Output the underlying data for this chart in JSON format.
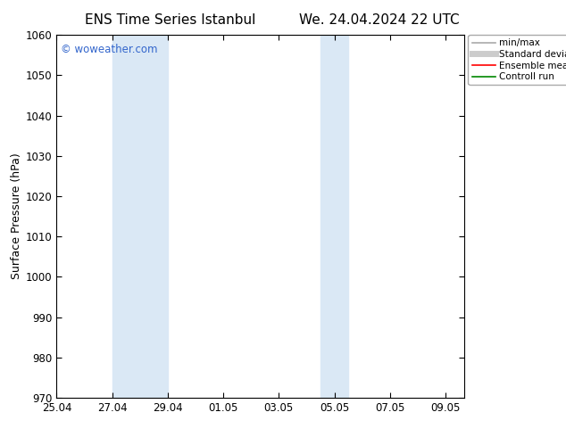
{
  "title_left": "ENS Time Series Istanbul",
  "title_right": "We. 24.04.2024 22 UTC",
  "ylabel": "Surface Pressure (hPa)",
  "ylim": [
    970,
    1060
  ],
  "yticks": [
    970,
    980,
    990,
    1000,
    1010,
    1020,
    1030,
    1040,
    1050,
    1060
  ],
  "xlim_start": 0.0,
  "xlim_end": 14.67,
  "xtick_positions": [
    0,
    2,
    4,
    6,
    8,
    10,
    12,
    14
  ],
  "xtick_labels": [
    "25.04",
    "27.04",
    "29.04",
    "01.05",
    "03.05",
    "05.05",
    "07.05",
    "09.05"
  ],
  "blue_bands": [
    {
      "x_start": 2.0,
      "x_end": 4.0
    },
    {
      "x_start": 9.5,
      "x_end": 10.5
    }
  ],
  "band_color": "#DAE8F5",
  "watermark": "© woweather.com",
  "watermark_color": "#3366CC",
  "background_color": "#FFFFFF",
  "legend_items": [
    {
      "label": "min/max",
      "color": "#AAAAAA",
      "lw": 1.2
    },
    {
      "label": "Standard deviation",
      "color": "#CCCCCC",
      "lw": 5
    },
    {
      "label": "Ensemble mean run",
      "color": "#FF0000",
      "lw": 1.2
    },
    {
      "label": "Controll run",
      "color": "#008800",
      "lw": 1.2
    }
  ],
  "tick_color": "#000000",
  "title_fontsize": 11,
  "axis_label_fontsize": 9,
  "tick_fontsize": 8.5,
  "legend_fontsize": 7.5,
  "watermark_fontsize": 8.5
}
